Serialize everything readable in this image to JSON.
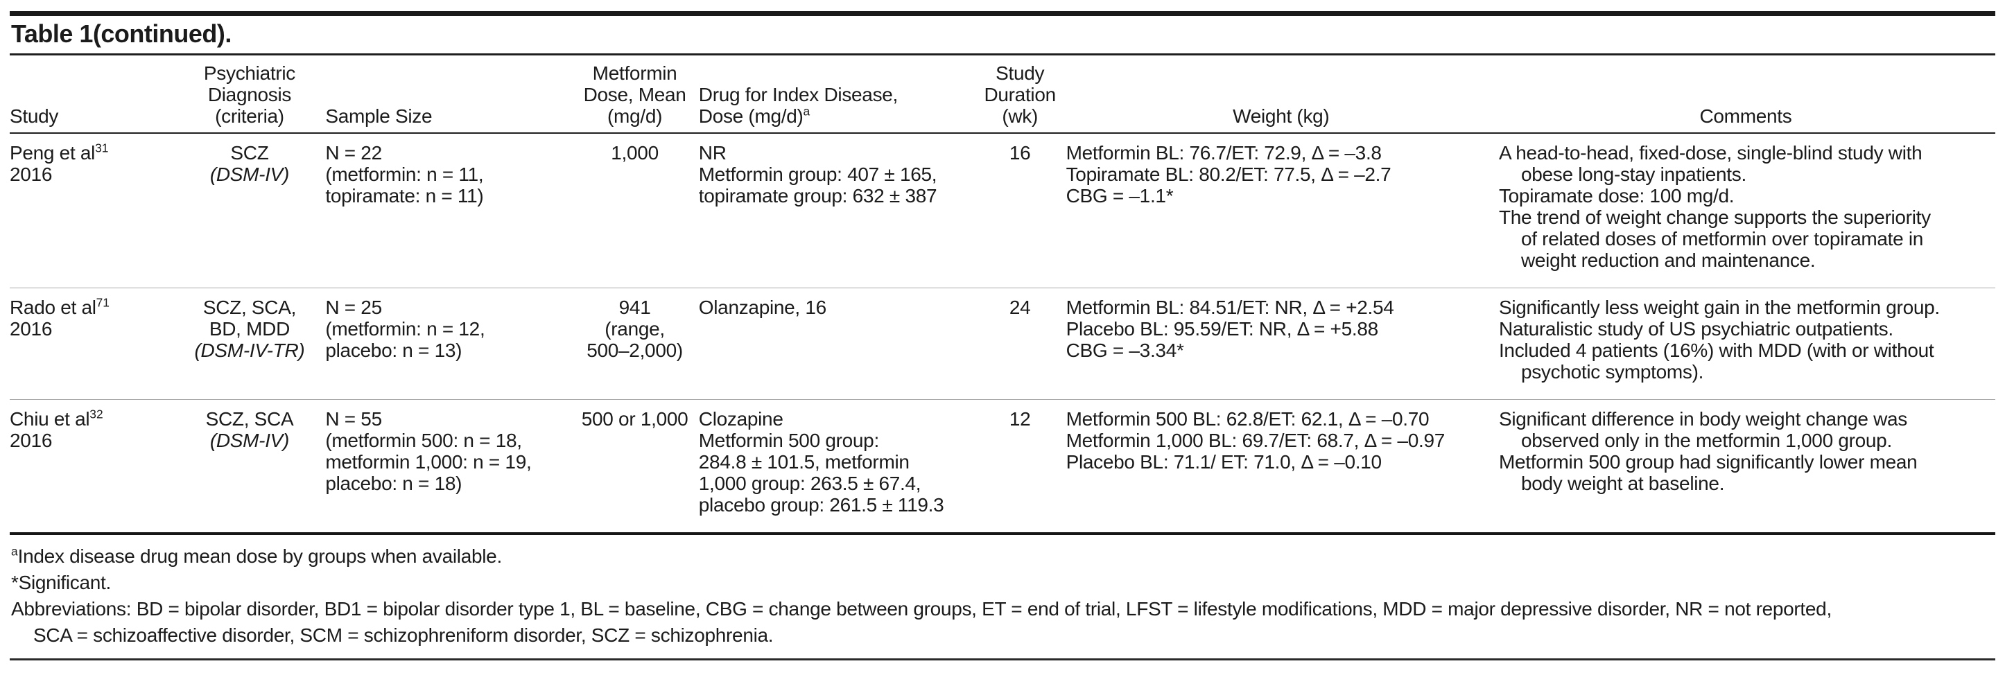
{
  "title": "Table 1(continued).",
  "columns": [
    {
      "id": "study",
      "lines": [
        "Study"
      ],
      "align": "al"
    },
    {
      "id": "diagnosis",
      "lines": [
        "Psychiatric",
        "Diagnosis",
        "(criteria)"
      ],
      "align": "ac"
    },
    {
      "id": "sample-size",
      "lines": [
        "Sample Size"
      ],
      "align": "al"
    },
    {
      "id": "metformin-dose",
      "lines": [
        "Metformin",
        "Dose, Mean",
        "(mg/d)"
      ],
      "align": "ac"
    },
    {
      "id": "index-drug",
      "lines": [
        "Drug for Index Disease,",
        "Dose (mg/d)"
      ],
      "sup": "a",
      "align": "al"
    },
    {
      "id": "duration",
      "lines": [
        "Study",
        "Duration",
        "(wk)"
      ],
      "align": "ac"
    },
    {
      "id": "weight",
      "lines": [
        "Weight (kg)"
      ],
      "align": "ac"
    },
    {
      "id": "comments",
      "lines": [
        "Comments"
      ],
      "align": "ac"
    }
  ],
  "rows": [
    {
      "study": {
        "name": "Peng et al",
        "ref": "31",
        "year": "2016"
      },
      "diagnosis": {
        "lines": [
          "SCZ"
        ],
        "criteria": "(DSM-IV)"
      },
      "sample_size": [
        "N = 22",
        "(metformin: n = 11,",
        "topiramate: n = 11)"
      ],
      "metformin_dose": [
        "1,000"
      ],
      "index_drug": [
        "NR",
        "Metformin group: 407 ± 165,",
        "topiramate group: 632 ± 387"
      ],
      "duration": "16",
      "weight": [
        "Metformin BL: 76.7/ET: 72.9, Δ = –3.8",
        "Topiramate BL: 80.2/ET: 77.5, Δ = –2.7",
        "CBG = –1.1*"
      ],
      "comments": [
        "A head-to-head, fixed-dose, single-blind study with\nobese long-stay inpatients.",
        "Topiramate dose: 100 mg/d.",
        "The trend of weight change supports the superiority\nof related doses of metformin over topiramate in\nweight reduction and maintenance."
      ]
    },
    {
      "study": {
        "name": "Rado et al",
        "ref": "71",
        "year": "2016"
      },
      "diagnosis": {
        "lines": [
          "SCZ, SCA,",
          "BD, MDD"
        ],
        "criteria": "(DSM-IV-TR)"
      },
      "sample_size": [
        "N = 25",
        "(metformin: n = 12,",
        "placebo: n = 13)"
      ],
      "metformin_dose": [
        "941",
        "(range,",
        "500–2,000)"
      ],
      "index_drug": [
        "Olanzapine, 16"
      ],
      "duration": "24",
      "weight": [
        "Metformin BL: 84.51/ET: NR, Δ = +2.54",
        "Placebo BL: 95.59/ET: NR, Δ = +5.88",
        "CBG = –3.34*"
      ],
      "comments": [
        "Significantly less weight gain in the metformin group.",
        "Naturalistic study of US psychiatric outpatients.",
        "Included 4 patients (16%) with MDD (with or without\npsychotic symptoms)."
      ]
    },
    {
      "study": {
        "name": "Chiu et al",
        "ref": "32",
        "year": "2016"
      },
      "diagnosis": {
        "lines": [
          "SCZ, SCA"
        ],
        "criteria": "(DSM-IV)"
      },
      "sample_size": [
        "N = 55",
        "(metformin 500: n = 18,",
        "metformin 1,000: n = 19,",
        "placebo: n = 18)"
      ],
      "metformin_dose": [
        "500 or 1,000"
      ],
      "index_drug": [
        "Clozapine",
        "Metformin 500 group:",
        "284.8 ± 101.5, metformin",
        "1,000 group: 263.5 ± 67.4,",
        "placebo group: 261.5 ± 119.3"
      ],
      "duration": "12",
      "weight": [
        "Metformin 500 BL: 62.8/ET: 62.1, Δ = –0.70",
        "Metformin 1,000 BL: 69.7/ET: 68.7, Δ = –0.97",
        "Placebo BL: 71.1/ ET: 71.0, Δ = –0.10"
      ],
      "comments": [
        "Significant difference in body weight change was\nobserved only in the metformin 1,000 group.",
        "Metformin 500 group had significantly lower mean\nbody weight at baseline."
      ]
    }
  ],
  "footnotes": [
    {
      "sup": "a",
      "text": "Index disease drug mean dose by groups when available."
    },
    {
      "text": "*Significant."
    },
    {
      "text": "Abbreviations: BD = bipolar disorder, BD1 = bipolar disorder type 1, BL = baseline, CBG = change between groups, ET = end of trial, LFST = lifestyle modifications, MDD = major depressive disorder, NR = not reported,\nSCA = schizoaffective disorder, SCM = schizophreniform disorder, SCZ = schizophrenia."
    }
  ]
}
